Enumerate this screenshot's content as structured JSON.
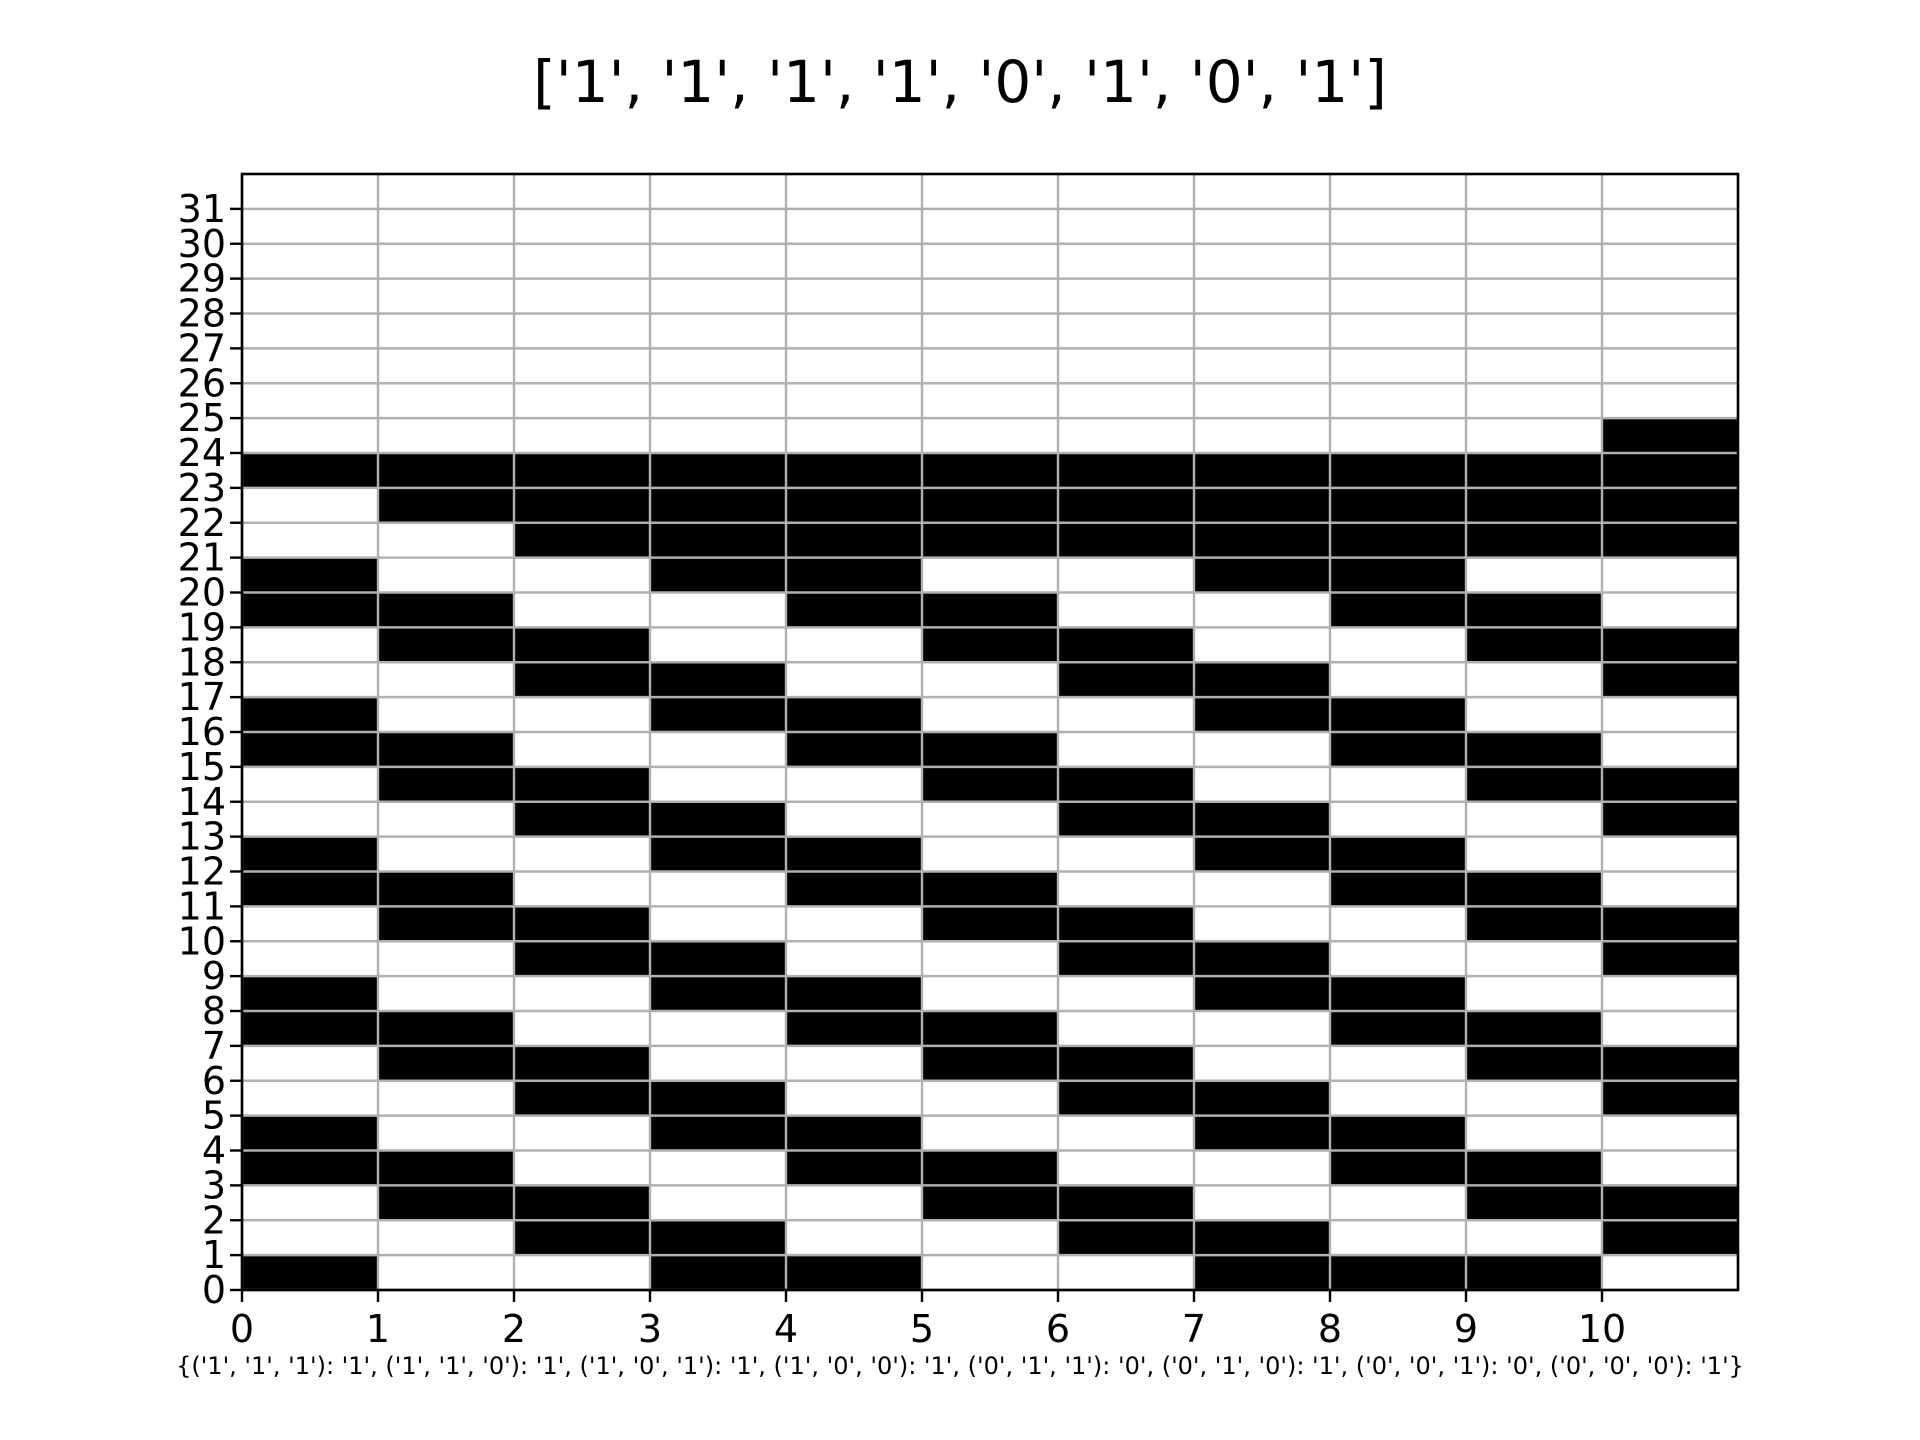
{
  "chart_data": {
    "type": "heatmap",
    "title": "['1', '1', '1', '1', '0', '1', '0', '1']",
    "caption": "{('1', '1', '1'): '1', ('1', '1', '0'): '1', ('1', '0', '1'): '1', ('1', '0', '0'): '1', ('0', '1', '1'): '0', ('0', '1', '0'): '1', ('0', '0', '1'): '0', ('0', '0', '0'): '1'}",
    "xlabel": "",
    "ylabel": "",
    "x_ticks": [
      "0",
      "1",
      "2",
      "3",
      "4",
      "5",
      "6",
      "7",
      "8",
      "9",
      "10"
    ],
    "y_ticks": [
      "0",
      "1",
      "2",
      "3",
      "4",
      "5",
      "6",
      "7",
      "8",
      "9",
      "10",
      "11",
      "12",
      "13",
      "14",
      "15",
      "16",
      "17",
      "18",
      "19",
      "20",
      "21",
      "22",
      "23",
      "24",
      "25",
      "26",
      "27",
      "28",
      "29",
      "30",
      "31"
    ],
    "xlim": [
      0,
      11
    ],
    "ylim": [
      0,
      32
    ],
    "grid": true,
    "colors": {
      "on": "#000000",
      "off": "#ffffff",
      "grid": "#b0b0b0"
    },
    "rows_bottom_to_top": [
      "100110011101",
      "001100110011",
      "011001100111",
      "110011001101",
      "100110011001",
      "001100110011",
      "011001100111",
      "110011001101",
      "100110011001",
      "001100110011",
      "011001100111",
      "110011001101",
      "100110011001",
      "001100110011",
      "011001100111",
      "110011001101",
      "100110011001",
      "001100110011",
      "011001100111",
      "110011001101",
      "100110011001",
      "001111111111",
      "011111111111",
      "111111111111",
      "000000000011",
      "000000000001"
    ]
  }
}
